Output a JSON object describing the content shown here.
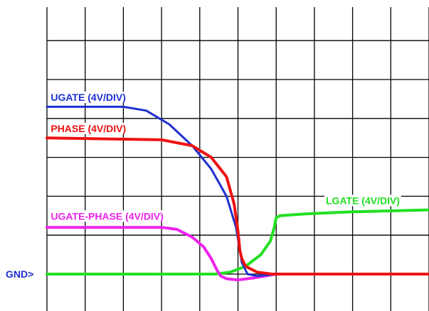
{
  "chart_data": {
    "type": "line",
    "title": "",
    "xlabel": "",
    "ylabel": "",
    "grid": true,
    "x_divisions": 10,
    "y_divisions": 8,
    "xlim": [
      0,
      10
    ],
    "ylim": [
      -1,
      7
    ],
    "ground_marker": "GND>",
    "series": [
      {
        "name": "UGATE (4V/DIV)",
        "color": "#1f2fd0",
        "x": [
          0,
          2,
          2.6,
          3.2,
          3.8,
          4.3,
          4.7,
          4.95,
          5.1,
          5.25,
          5.5,
          6.0,
          10
        ],
        "y": [
          4.3,
          4.3,
          4.2,
          3.85,
          3.3,
          2.7,
          2.0,
          1.2,
          0.3,
          0.0,
          -0.05,
          0.0,
          0.0
        ]
      },
      {
        "name": "PHASE (4V/DIV)",
        "color": "#ee1111",
        "x": [
          0,
          3,
          3.8,
          4.3,
          4.7,
          4.9,
          5.0,
          5.05,
          5.1,
          5.2,
          5.5,
          5.9,
          10
        ],
        "y": [
          3.5,
          3.45,
          3.3,
          3.0,
          2.5,
          1.8,
          1.1,
          0.6,
          0.4,
          0.2,
          0.05,
          0.0,
          0.0
        ]
      },
      {
        "name": "UGATE-PHASE (4V/DIV)",
        "color": "#ee22ee",
        "x": [
          0,
          3,
          3.4,
          3.8,
          4.1,
          4.3,
          4.45,
          4.55,
          4.7,
          5.0,
          5.4,
          6.0,
          10
        ],
        "y": [
          1.2,
          1.2,
          1.15,
          0.95,
          0.7,
          0.4,
          0.1,
          -0.05,
          -0.12,
          -0.15,
          -0.1,
          0.0,
          0.0
        ]
      },
      {
        "name": "LGATE (4V/DIV)",
        "color": "#22e022",
        "x": [
          0,
          4.4,
          4.8,
          5.2,
          5.6,
          5.85,
          5.95,
          6.0,
          6.1,
          6.8,
          8.0,
          10
        ],
        "y": [
          0,
          0,
          0.05,
          0.2,
          0.5,
          0.85,
          1.2,
          1.45,
          1.5,
          1.55,
          1.6,
          1.65
        ]
      }
    ],
    "labels": [
      {
        "series": 0,
        "text": "UGATE (4V/DIV)",
        "x": 0.1,
        "y": 4.45
      },
      {
        "series": 1,
        "text": "PHASE (4V/DIV)",
        "x": 0.1,
        "y": 3.65
      },
      {
        "series": 2,
        "text": "UGATE-PHASE (4V/DIV)",
        "x": 0.1,
        "y": 1.4
      },
      {
        "series": 3,
        "text": "LGATE (4V/DIV)",
        "x": 7.3,
        "y": 1.8
      }
    ]
  }
}
